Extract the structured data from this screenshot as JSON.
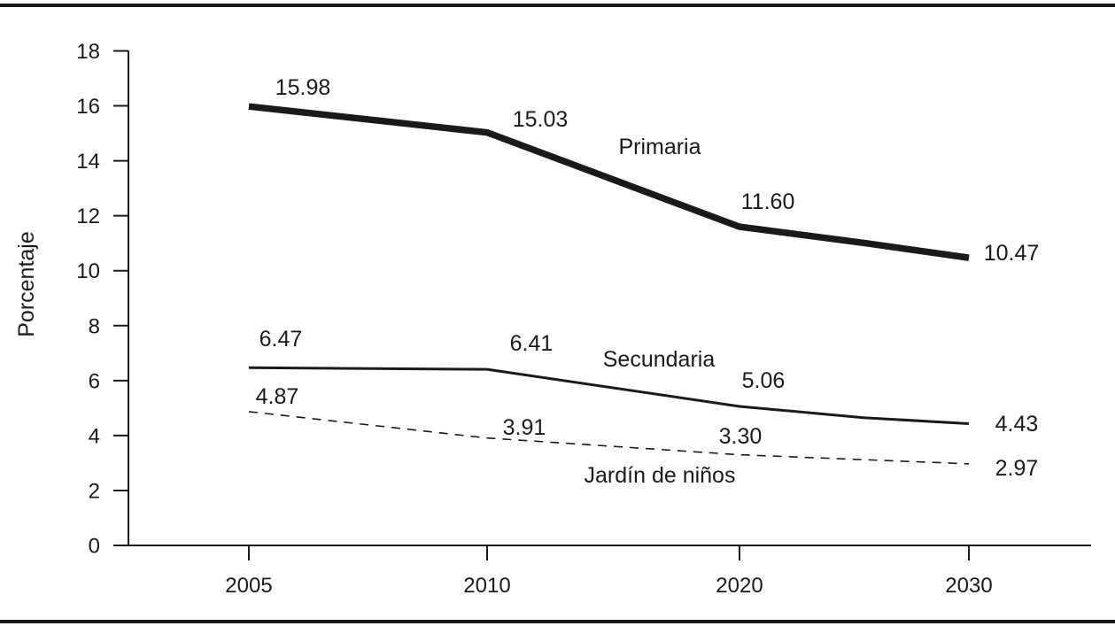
{
  "chart_data": {
    "type": "line",
    "title": "",
    "xlabel": "",
    "ylabel": "Porcentaje",
    "categories": [
      "2005",
      "2010",
      "2020",
      "2030"
    ],
    "x_values": [
      2005,
      2010,
      2020,
      2030
    ],
    "ylim": [
      0,
      18
    ],
    "yticks": [
      "0",
      "2",
      "4",
      "6",
      "8",
      "10",
      "12",
      "14",
      "16",
      "18"
    ],
    "grid": false,
    "series": [
      {
        "name": "Primaria",
        "values": [
          15.98,
          15.03,
          11.6,
          10.47
        ],
        "labels": [
          "15.98",
          "15.03",
          "11.60",
          "10.47"
        ],
        "style": "thick-solid",
        "color": "#1a1a1a"
      },
      {
        "name": "Secundaria",
        "values": [
          6.47,
          6.41,
          5.06,
          4.43
        ],
        "labels": [
          "6.47",
          "6.41",
          "5.06",
          "4.43"
        ],
        "style": "solid",
        "color": "#1a1a1a"
      },
      {
        "name": "Jardín de niños",
        "values": [
          4.87,
          3.91,
          3.3,
          2.97
        ],
        "labels": [
          "4.87",
          "3.91",
          "3.30",
          "2.97"
        ],
        "style": "dashed",
        "color": "#1a1a1a"
      }
    ]
  }
}
